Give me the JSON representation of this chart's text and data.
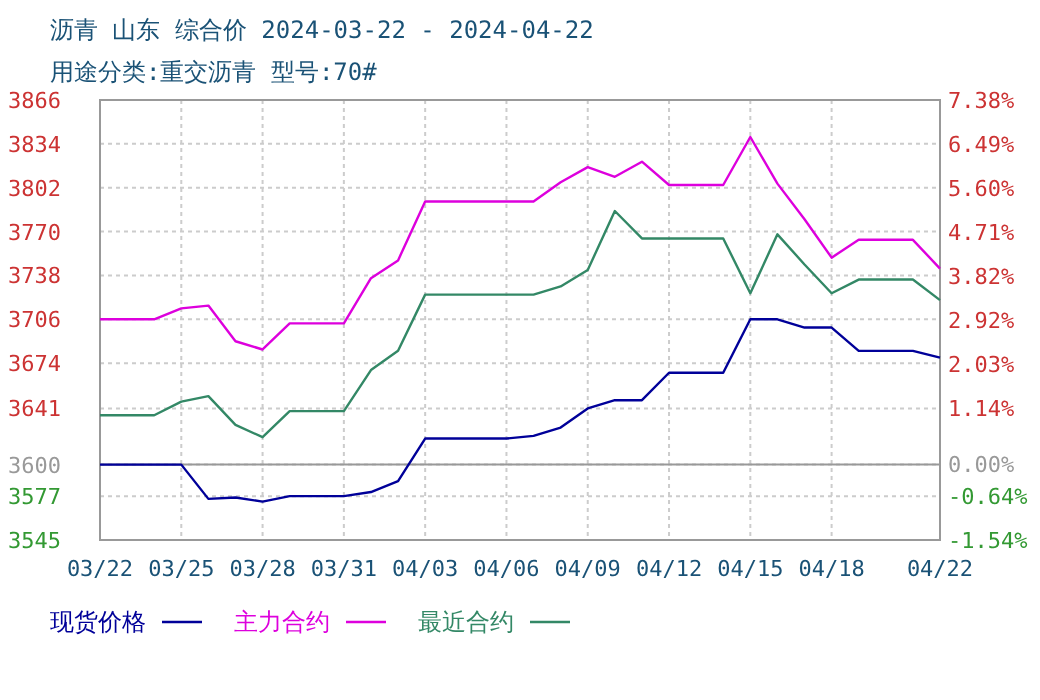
{
  "chart_data": {
    "type": "line",
    "title": "沥青 山东 综合价 2024-03-22 - 2024-04-22",
    "subtitle": "用途分类:重交沥青 型号:70#",
    "xlim": [
      "2024-03-22",
      "2024-04-22"
    ],
    "xticks": [
      {
        "value": "2024-03-22",
        "label": "03/22"
      },
      {
        "value": "2024-03-25",
        "label": "03/25"
      },
      {
        "value": "2024-03-28",
        "label": "03/28"
      },
      {
        "value": "2024-03-31",
        "label": "03/31"
      },
      {
        "value": "2024-04-03",
        "label": "04/03"
      },
      {
        "value": "2024-04-06",
        "label": "04/06"
      },
      {
        "value": "2024-04-09",
        "label": "04/09"
      },
      {
        "value": "2024-04-12",
        "label": "04/12"
      },
      {
        "value": "2024-04-15",
        "label": "04/15"
      },
      {
        "value": "2024-04-18",
        "label": "04/18"
      },
      {
        "value": "2024-04-22",
        "label": "04/22"
      }
    ],
    "ylim": [
      3545,
      3866
    ],
    "yticks": [
      3545,
      3577,
      3600,
      3641,
      3674,
      3706,
      3738,
      3770,
      3802,
      3834,
      3866
    ],
    "y2lim": [
      -1.54,
      7.38
    ],
    "y2ticks": [
      {
        "value": -1.54,
        "label": "-1.54%"
      },
      {
        "value": -0.64,
        "label": "-0.64%"
      },
      {
        "value": 0,
        "label": "0.00%"
      },
      {
        "value": 1.14,
        "label": "1.14%"
      },
      {
        "value": 2.03,
        "label": "2.03%"
      },
      {
        "value": 2.92,
        "label": "2.92%"
      },
      {
        "value": 3.82,
        "label": "3.82%"
      },
      {
        "value": 4.71,
        "label": "4.71%"
      },
      {
        "value": 5.6,
        "label": "5.60%"
      },
      {
        "value": 6.49,
        "label": "6.49%"
      },
      {
        "value": 7.38,
        "label": "7.38%"
      }
    ],
    "ref_lines": [
      {
        "axis": "y",
        "value": 3600,
        "color": "#999999"
      }
    ],
    "grid": true,
    "legend": "bottom",
    "marker": "none",
    "line_style": "solid",
    "series": [
      {
        "name": "现货价格",
        "color": "#000099",
        "x": [
          "2024-03-22",
          "2024-03-25",
          "2024-03-26",
          "2024-03-27",
          "2024-03-28",
          "2024-03-29",
          "2024-03-31",
          "2024-04-01",
          "2024-04-02",
          "2024-04-03",
          "2024-04-06",
          "2024-04-07",
          "2024-04-08",
          "2024-04-09",
          "2024-04-10",
          "2024-04-11",
          "2024-04-12",
          "2024-04-14",
          "2024-04-15",
          "2024-04-16",
          "2024-04-17",
          "2024-04-18",
          "2024-04-19",
          "2024-04-21",
          "2024-04-22"
        ],
        "values": [
          3600,
          3600,
          3575,
          3576,
          3573,
          3577,
          3577,
          3580,
          3588,
          3619,
          3619,
          3621,
          3627,
          3641,
          3647,
          3647,
          3667,
          3667,
          3706,
          3706,
          3700,
          3700,
          3683,
          3683,
          3678
        ]
      },
      {
        "name": "主力合约",
        "color": "#dd00dd",
        "x": [
          "2024-03-22",
          "2024-03-24",
          "2024-03-25",
          "2024-03-26",
          "2024-03-27",
          "2024-03-28",
          "2024-03-29",
          "2024-03-31",
          "2024-04-01",
          "2024-04-02",
          "2024-04-03",
          "2024-04-07",
          "2024-04-08",
          "2024-04-09",
          "2024-04-10",
          "2024-04-11",
          "2024-04-12",
          "2024-04-14",
          "2024-04-15",
          "2024-04-16",
          "2024-04-17",
          "2024-04-18",
          "2024-04-19",
          "2024-04-21",
          "2024-04-22"
        ],
        "values": [
          3706,
          3706,
          3714,
          3716,
          3690,
          3684,
          3703,
          3703,
          3736,
          3749,
          3792,
          3792,
          3806,
          3817,
          3810,
          3821,
          3804,
          3804,
          3839,
          3805,
          3779,
          3751,
          3764,
          3764,
          3743
        ]
      },
      {
        "name": "最近合约",
        "color": "#338866",
        "x": [
          "2024-03-22",
          "2024-03-24",
          "2024-03-25",
          "2024-03-26",
          "2024-03-27",
          "2024-03-28",
          "2024-03-29",
          "2024-03-31",
          "2024-04-01",
          "2024-04-02",
          "2024-04-03",
          "2024-04-07",
          "2024-04-08",
          "2024-04-09",
          "2024-04-10",
          "2024-04-11",
          "2024-04-14",
          "2024-04-15",
          "2024-04-16",
          "2024-04-17",
          "2024-04-18",
          "2024-04-19",
          "2024-04-21",
          "2024-04-22"
        ],
        "values": [
          3636,
          3636,
          3646,
          3650,
          3629,
          3620,
          3639,
          3639,
          3669,
          3683,
          3724,
          3724,
          3730,
          3742,
          3785,
          3765,
          3765,
          3725,
          3768,
          3746,
          3725,
          3735,
          3735,
          3720
        ]
      }
    ]
  }
}
